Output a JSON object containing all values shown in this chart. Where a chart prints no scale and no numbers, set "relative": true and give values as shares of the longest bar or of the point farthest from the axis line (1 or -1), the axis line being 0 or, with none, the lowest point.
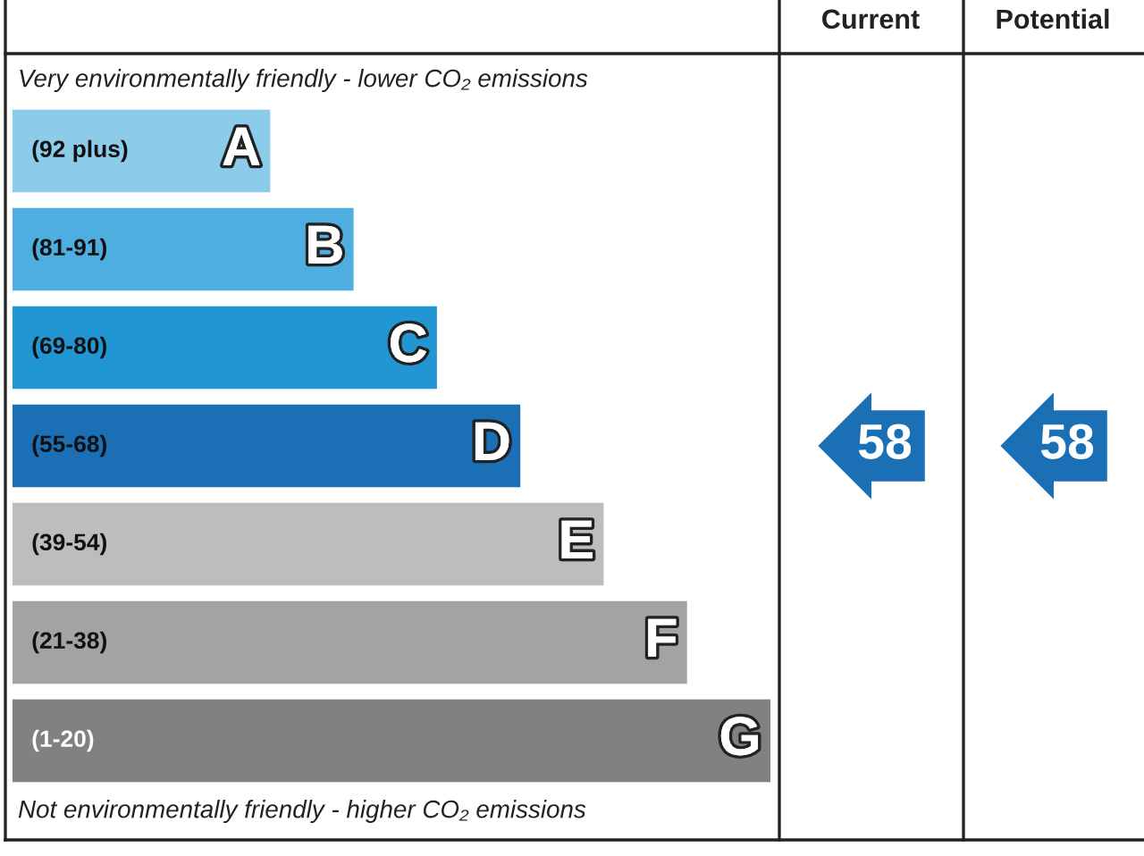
{
  "chart_data": {
    "type": "bar",
    "orientation": "horizontal",
    "relative": true,
    "categories": [
      "A",
      "B",
      "C",
      "D",
      "E",
      "F",
      "G"
    ],
    "values": [
      0.34,
      0.45,
      0.56,
      0.67,
      0.78,
      0.89,
      1.0
    ],
    "colors": [
      "#8ccbea",
      "#4eaee0",
      "#2196d3",
      "#1a6fb5",
      "#bdbdbd",
      "#a3a3a3",
      "#818181"
    ],
    "annotations": [
      "Very environmentally friendly - lower CO₂ emissions",
      "Not environmentally friendly - higher CO₂ emissions",
      "Current",
      "Potential",
      "(92 plus)",
      "(81-91)",
      "(69-80)",
      "(55-68)",
      "(39-54)",
      "(21-38)",
      "(1-20)",
      "58",
      "58"
    ]
  }
}
